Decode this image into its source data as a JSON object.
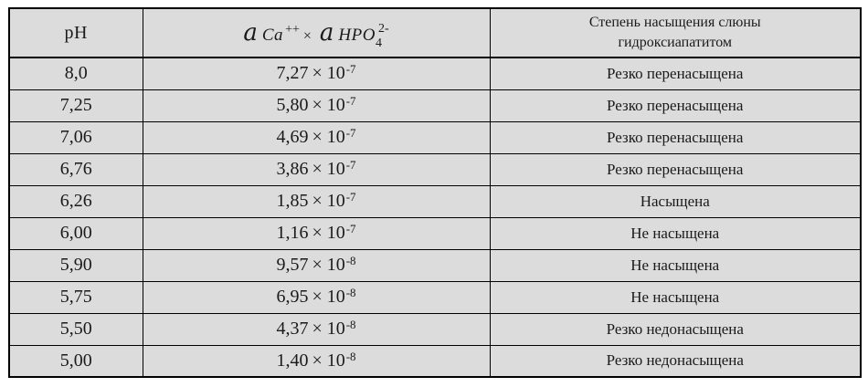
{
  "table": {
    "cell_background": "#dcdcdc",
    "border_color": "#000000",
    "text_color": "#1a1a1a",
    "columns": {
      "ph_label": "pH",
      "activity": {
        "a1": "a",
        "ca": "Ca",
        "ca_charge": "++",
        "times": "×",
        "a2": "a",
        "hpo": "HPO",
        "hpo_sub": "4",
        "hpo_charge": "2-"
      },
      "saturation_line1": "Степень насыщения слюны",
      "saturation_line2": "гидроксиапатитом"
    },
    "times_ten": "× 10",
    "rows": [
      {
        "ph": "8,0",
        "mantissa": "7,27",
        "exp": "-7",
        "saturation": "Резко перенасыщена"
      },
      {
        "ph": "7,25",
        "mantissa": "5,80",
        "exp": "-7",
        "saturation": "Резко перенасыщена"
      },
      {
        "ph": "7,06",
        "mantissa": "4,69",
        "exp": "-7",
        "saturation": "Резко перенасыщена"
      },
      {
        "ph": "6,76",
        "mantissa": "3,86",
        "exp": "-7",
        "saturation": "Резко перенасыщена"
      },
      {
        "ph": "6,26",
        "mantissa": "1,85",
        "exp": "-7",
        "saturation": "Насыщена"
      },
      {
        "ph": "6,00",
        "mantissa": "1,16",
        "exp": "-7",
        "saturation": "Не насыщена"
      },
      {
        "ph": "5,90",
        "mantissa": "9,57",
        "exp": "-8",
        "saturation": "Не насыщена"
      },
      {
        "ph": "5,75",
        "mantissa": "6,95",
        "exp": "-8",
        "saturation": "Не насыщена"
      },
      {
        "ph": "5,50",
        "mantissa": "4,37",
        "exp": "-8",
        "saturation": "Резко недонасыщена"
      },
      {
        "ph": "5,00",
        "mantissa": "1,40",
        "exp": "-8",
        "saturation": "Резко недонасыщена"
      }
    ]
  },
  "chart_data": {
    "type": "table",
    "columns": [
      "pH",
      "a Ca++ × a HPO4 2-",
      "Степень насыщения слюны гидроксиапатитом"
    ],
    "rows": [
      [
        "8,0",
        "7,27 × 10⁻⁷",
        "Резко перенасыщена"
      ],
      [
        "7,25",
        "5,80 × 10⁻⁷",
        "Резко перенасыщена"
      ],
      [
        "7,06",
        "4,69 × 10⁻⁷",
        "Резко перенасыщена"
      ],
      [
        "6,76",
        "3,86 × 10⁻⁷",
        "Резко перенасыщена"
      ],
      [
        "6,26",
        "1,85 × 10⁻⁷",
        "Насыщена"
      ],
      [
        "6,00",
        "1,16 × 10⁻⁷",
        "Не насыщена"
      ],
      [
        "5,90",
        "9,57 × 10⁻⁸",
        "Не насыщена"
      ],
      [
        "5,75",
        "6,95 × 10⁻⁸",
        "Не насыщена"
      ],
      [
        "5,50",
        "4,37 × 10⁻⁸",
        "Резко недонасыщена"
      ],
      [
        "5,00",
        "1,40 × 10⁻⁸",
        "Резко недонасыщена"
      ]
    ]
  }
}
